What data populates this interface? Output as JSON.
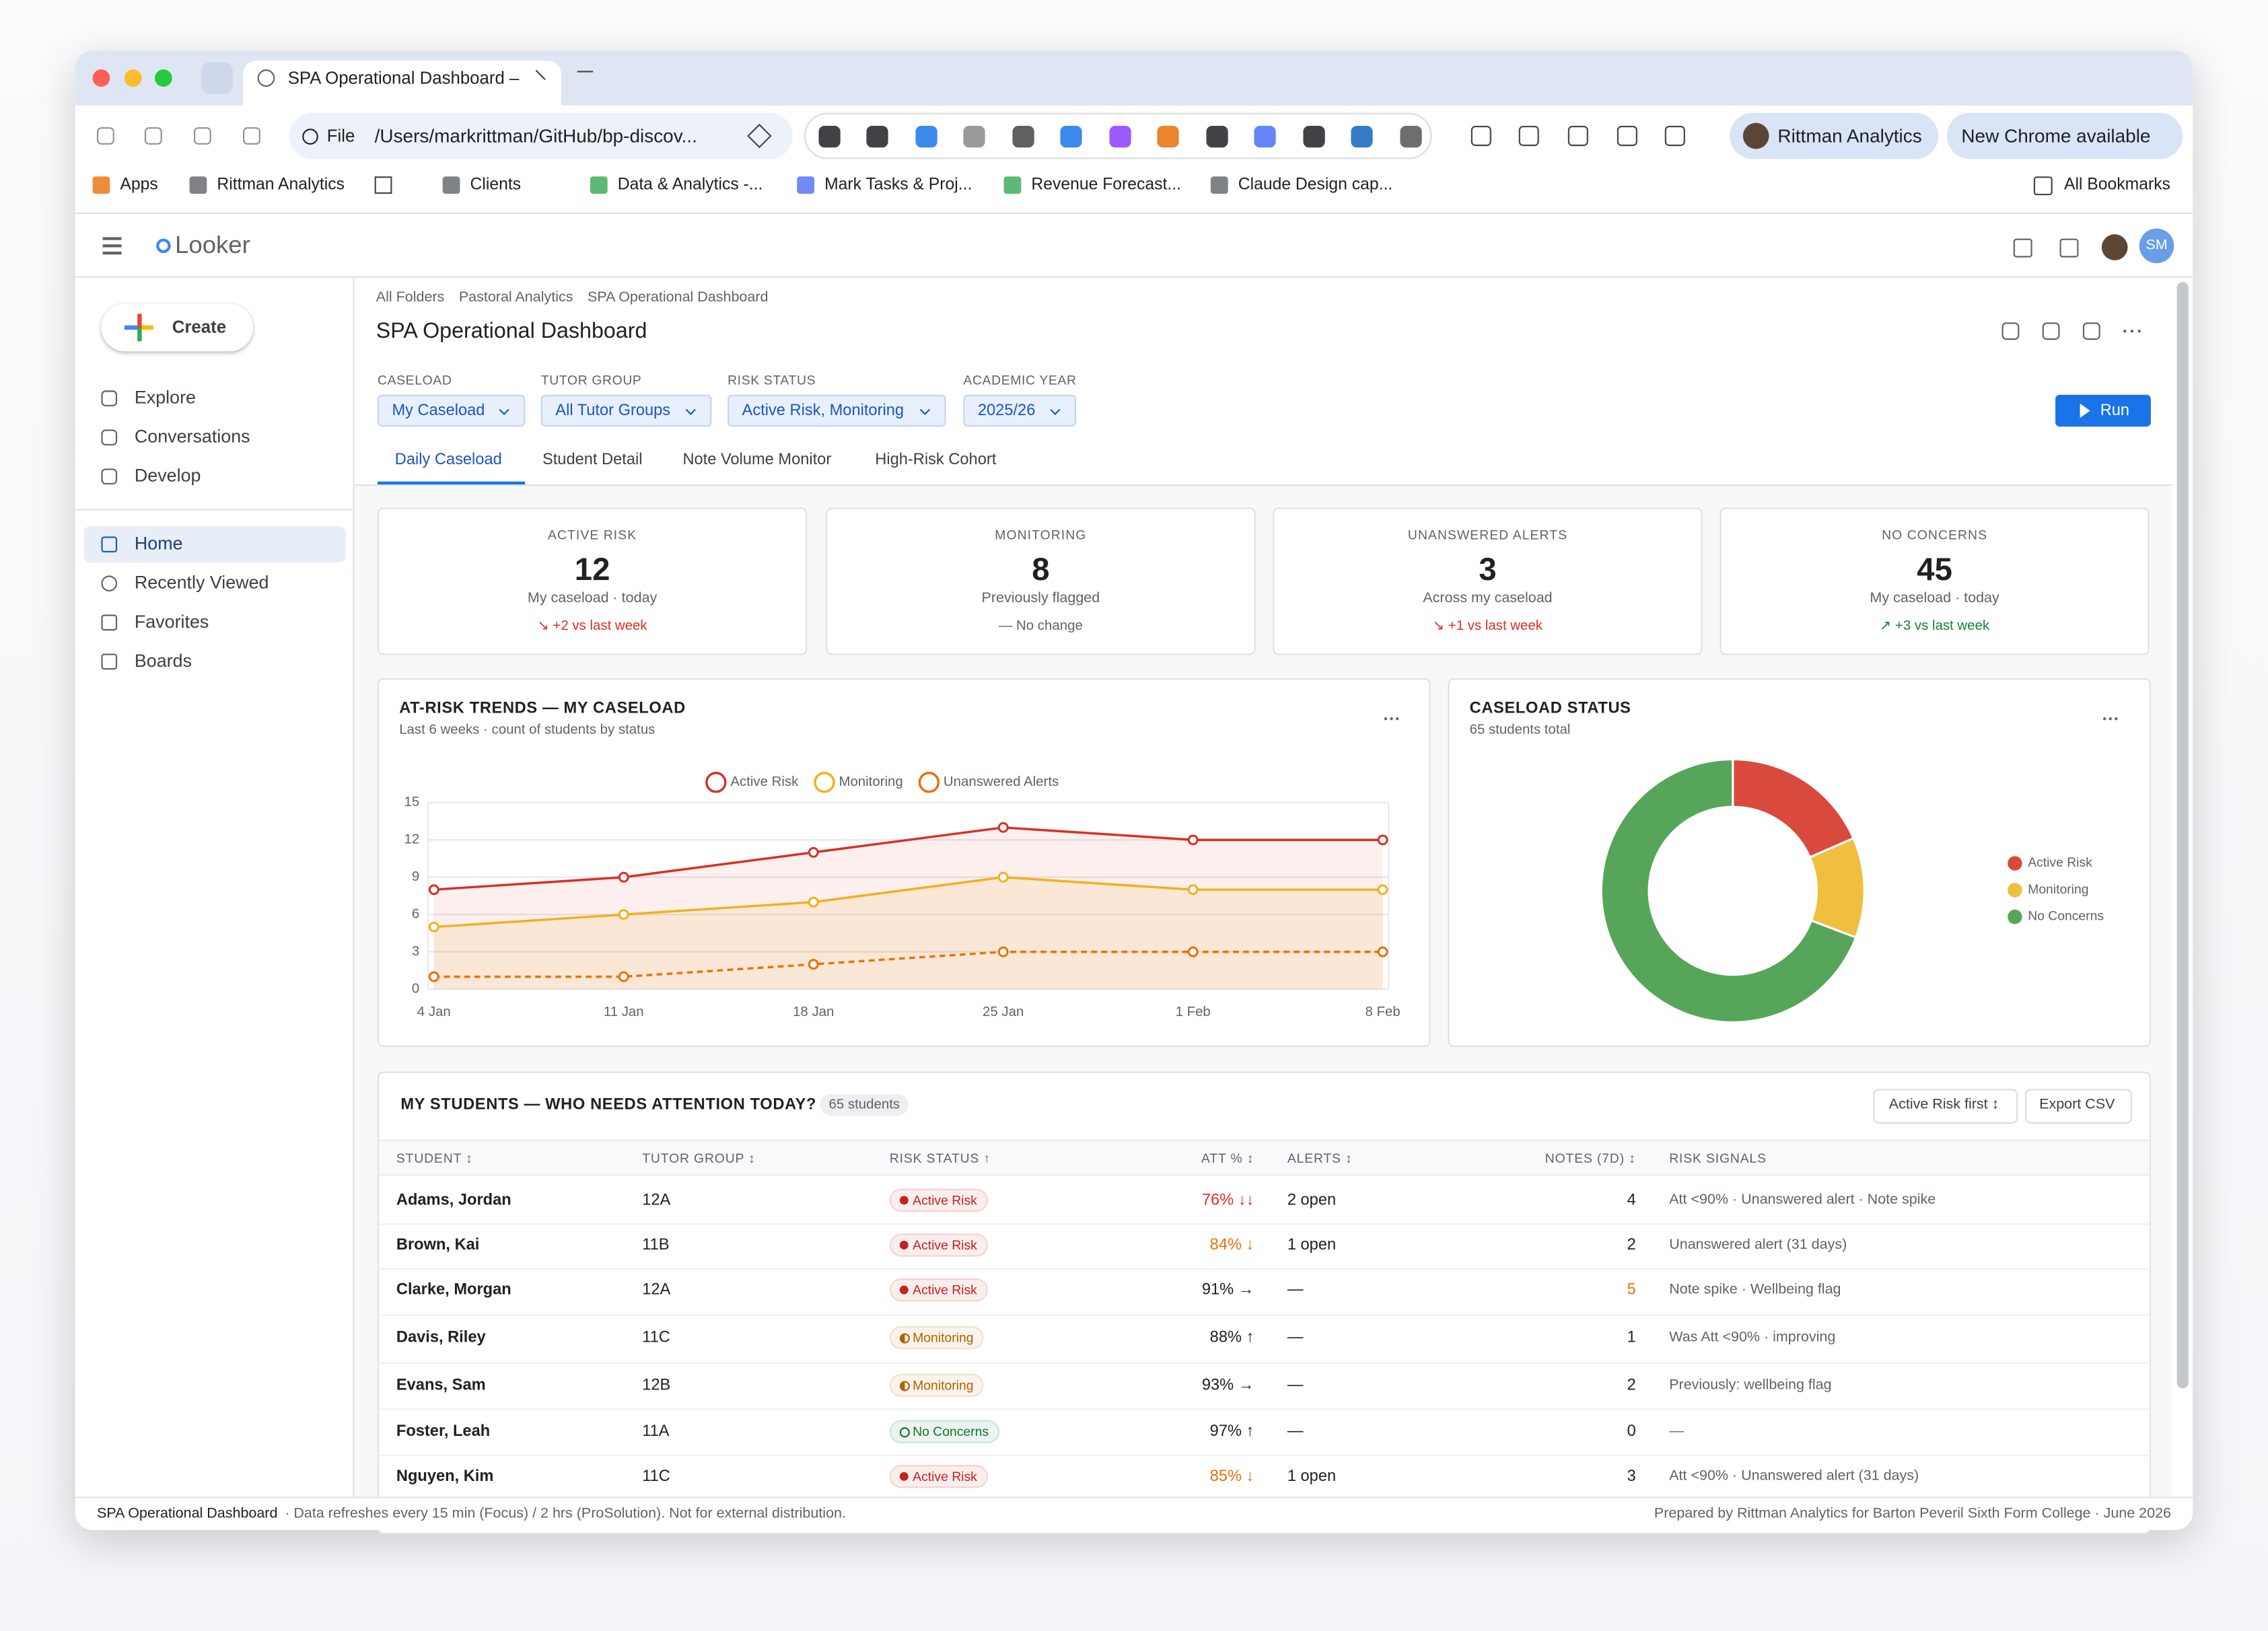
{
  "browser": {
    "tab_title": "SPA Operational Dashboard –",
    "address_scheme": "File",
    "address": "/Users/markrittman/GitHub/bp-discov...",
    "profile": "Rittman Analytics",
    "update_notice": "New Chrome available",
    "bookmarks": [
      "Apps",
      "Rittman Analytics",
      "Clients",
      "Data & Analytics -...",
      "Mark Tasks & Proj...",
      "Revenue Forecast...",
      "Claude Design cap..."
    ],
    "all_bookmarks": "All Bookmarks"
  },
  "app": {
    "logo": "Looker",
    "user_initials": "SM",
    "create": "Create",
    "nav_tools": [
      "Explore",
      "Conversations",
      "Develop"
    ],
    "nav_main": [
      "Home",
      "Recently Viewed",
      "Favorites",
      "Boards"
    ]
  },
  "dashboard": {
    "breadcrumbs": [
      "All Folders",
      "Pastoral Analytics",
      "SPA Operational Dashboard"
    ],
    "title": "SPA Operational Dashboard",
    "filters": [
      {
        "label": "CASELOAD",
        "value": "My Caseload"
      },
      {
        "label": "TUTOR GROUP",
        "value": "All Tutor Groups"
      },
      {
        "label": "RISK STATUS",
        "value": "Active Risk, Monitoring"
      },
      {
        "label": "ACADEMIC YEAR",
        "value": "2025/26"
      }
    ],
    "run": "Run",
    "tabs": [
      "Daily Caseload",
      "Student Detail",
      "Note Volume Monitor",
      "High-Risk Cohort"
    ],
    "kpis": [
      {
        "label": "ACTIVE RISK",
        "value": 12,
        "context": "My caseload · today",
        "change": "↘ +2 vs last week",
        "change_color": "#d93025"
      },
      {
        "label": "MONITORING",
        "value": 8,
        "context": "Previously flagged",
        "change": "— No change",
        "change_color": "#5f6368"
      },
      {
        "label": "UNANSWERED ALERTS",
        "value": 3,
        "context": "Across my caseload",
        "change": "↘ +1 vs last week",
        "change_color": "#d93025"
      },
      {
        "label": "NO CONCERNS",
        "value": 45,
        "context": "My caseload · today",
        "change": "↗ +3 vs last week",
        "change_color": "#188038"
      }
    ]
  },
  "trend_chart": {
    "type": "line",
    "title": "AT-RISK TRENDS — MY CASELOAD",
    "subtitle": "Last 6 weeks · count of students by status",
    "x": [
      "4 Jan",
      "11 Jan",
      "18 Jan",
      "25 Jan",
      "1 Feb",
      "8 Feb"
    ],
    "series": [
      {
        "name": "Active Risk",
        "color": "#d93025",
        "values": [
          8,
          9,
          11,
          13,
          12,
          12
        ],
        "area": true,
        "dashed": false
      },
      {
        "name": "Monitoring",
        "color": "#f2b01e",
        "values": [
          5,
          6,
          7,
          9,
          8,
          8
        ],
        "area": true,
        "dashed": false
      },
      {
        "name": "Unanswered Alerts",
        "color": "#e8710a",
        "values": [
          1,
          1,
          2,
          3,
          3,
          3
        ],
        "area": false,
        "dashed": true
      }
    ],
    "ylim": [
      0,
      15
    ],
    "yticks": [
      0,
      3,
      6,
      9,
      12,
      15
    ],
    "grid": true
  },
  "status_chart": {
    "type": "pie",
    "donut": true,
    "title": "CASELOAD STATUS",
    "subtitle": "65 students total",
    "categories": [
      "Active Risk",
      "Monitoring",
      "No Concerns"
    ],
    "values": [
      12,
      8,
      45
    ],
    "colors": [
      "#d94a3d",
      "#f0bf3f",
      "#57a55a"
    ]
  },
  "table": {
    "title": "MY STUDENTS — WHO NEEDS ATTENTION TODAY?",
    "count": "65 students",
    "sort": "Active Risk first ↕",
    "export": "Export CSV",
    "columns": [
      "STUDENT ↕",
      "TUTOR GROUP ↕",
      "RISK STATUS ↑",
      "ATT % ↕",
      "ALERTS ↕",
      "NOTES (7D) ↕",
      "RISK SIGNALS"
    ],
    "rows": [
      {
        "student": "Adams, Jordan",
        "tutor_group": "12A",
        "risk_status": "Active Risk",
        "status_color": "#c5221f",
        "att": "76% ↓↓",
        "att_color": "#d93025",
        "alerts": "2 open",
        "notes": 4,
        "notes_color": "#202124",
        "signals": "Att <90% · Unanswered alert · Note spike"
      },
      {
        "student": "Brown, Kai",
        "tutor_group": "11B",
        "risk_status": "Active Risk",
        "status_color": "#c5221f",
        "att": "84% ↓",
        "att_color": "#e8710a",
        "alerts": "1 open",
        "notes": 2,
        "notes_color": "#202124",
        "signals": "Unanswered alert (31 days)"
      },
      {
        "student": "Clarke, Morgan",
        "tutor_group": "12A",
        "risk_status": "Active Risk",
        "status_color": "#c5221f",
        "att": "91% →",
        "att_color": "#202124",
        "alerts": "—",
        "notes": 5,
        "notes_color": "#e8710a",
        "signals": "Note spike · Wellbeing flag"
      },
      {
        "student": "Davis, Riley",
        "tutor_group": "11C",
        "risk_status": "Monitoring",
        "status_color": "#b06000",
        "att": "88% ↑",
        "att_color": "#202124",
        "alerts": "—",
        "notes": 1,
        "notes_color": "#202124",
        "signals": "Was Att <90% · improving"
      },
      {
        "student": "Evans, Sam",
        "tutor_group": "12B",
        "risk_status": "Monitoring",
        "status_color": "#b06000",
        "att": "93% →",
        "att_color": "#202124",
        "alerts": "—",
        "notes": 2,
        "notes_color": "#202124",
        "signals": "Previously: wellbeing flag"
      },
      {
        "student": "Foster, Leah",
        "tutor_group": "11A",
        "risk_status": "No Concerns",
        "status_color": "#137333",
        "att": "97% ↑",
        "att_color": "#202124",
        "alerts": "—",
        "notes": 0,
        "notes_color": "#202124",
        "signals": "—"
      },
      {
        "student": "Nguyen, Kim",
        "tutor_group": "11C",
        "risk_status": "Active Risk",
        "status_color": "#c5221f",
        "att": "85% ↓",
        "att_color": "#e8710a",
        "alerts": "1 open",
        "notes": 3,
        "notes_color": "#202124",
        "signals": "Att <90% · Unanswered alert (31 days)"
      }
    ]
  },
  "footer": {
    "title": "SPA Operational Dashboard",
    "note": "· Data refreshes every 15 min (Focus) / 2 hrs (ProSolution). Not for external distribution.",
    "credit": "Prepared by Rittman Analytics for Barton Peveril Sixth Form College · June 2026"
  }
}
